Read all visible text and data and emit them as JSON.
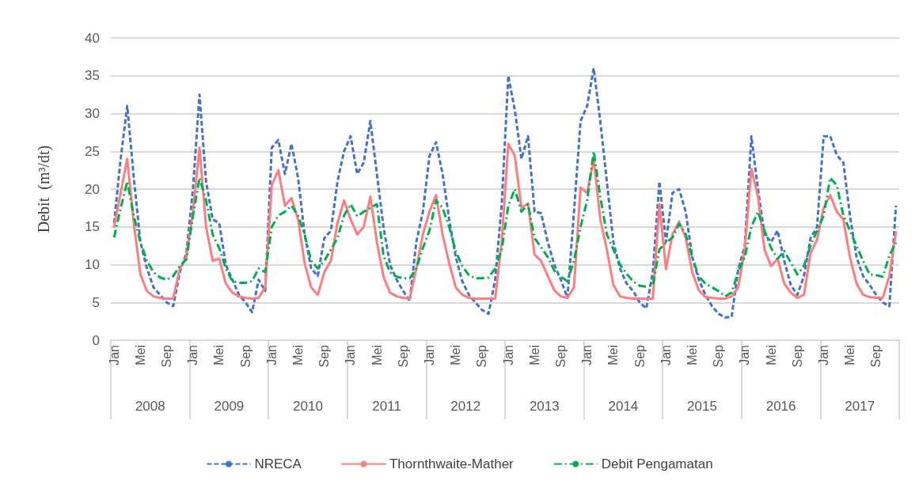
{
  "chart_data": {
    "type": "line",
    "ylabel": "Debit  (m³/dt)",
    "categories": [
      "Jan",
      null,
      null,
      null,
      "Mei",
      null,
      null,
      null,
      "Sep",
      null,
      null,
      null,
      "Jan",
      null,
      null,
      null,
      "Mei",
      null,
      null,
      null,
      "Sep",
      null,
      null,
      null,
      "Jan",
      null,
      null,
      null,
      "Mei",
      null,
      null,
      null,
      "Sep",
      null,
      null,
      null,
      "Jan",
      null,
      null,
      null,
      "Mei",
      null,
      null,
      null,
      "Sep",
      null,
      null,
      null,
      "Jan",
      null,
      null,
      null,
      "Mei",
      null,
      null,
      null,
      "Sep",
      null,
      null,
      null,
      "Jan",
      null,
      null,
      null,
      "Mei",
      null,
      null,
      null,
      "Sep",
      null,
      null,
      null,
      "Jan",
      null,
      null,
      null,
      "Mei",
      null,
      null,
      null,
      "Sep",
      null,
      null,
      null,
      "Jan",
      null,
      null,
      null,
      "Mei",
      null,
      null,
      null,
      "Sep",
      null,
      null,
      null,
      "Jan",
      null,
      null,
      null,
      "Mei",
      null,
      null,
      null,
      "Sep",
      null,
      null,
      null,
      "Jan",
      null,
      null,
      null,
      "Mei",
      null,
      null,
      null,
      "Sep",
      null,
      null,
      null
    ],
    "annotations": [
      "2008",
      "2009",
      "2010",
      "2011",
      "2012",
      "2013",
      "2014",
      "2015",
      "2016",
      "2017"
    ],
    "series": [
      {
        "name": "NRECA",
        "color": "#4472c4",
        "line_style": "dashed",
        "values": [
          15.5,
          24,
          31,
          21.5,
          13,
          9.5,
          7,
          6,
          5,
          4.5,
          9,
          11.5,
          20,
          32.5,
          21,
          16,
          15.5,
          10,
          8,
          6,
          5,
          3.7,
          8,
          6.5,
          25.5,
          26.5,
          22,
          26,
          21.5,
          14,
          9.5,
          8.5,
          13.5,
          14.5,
          21,
          25,
          27,
          22,
          23.5,
          29,
          22,
          15,
          10,
          8,
          6.5,
          5.2,
          13,
          17,
          24.4,
          26.2,
          22,
          16,
          11,
          7.8,
          6,
          5,
          4,
          3.5,
          8,
          18,
          35,
          30.4,
          24,
          27,
          17,
          16.8,
          13,
          10,
          8,
          5.6,
          17,
          29,
          31,
          36,
          29,
          21,
          13,
          9.5,
          7.5,
          6.5,
          5,
          4.2,
          9,
          21,
          13,
          19.5,
          20,
          17,
          11,
          8,
          6,
          4.5,
          3.5,
          3,
          3.1,
          9.4,
          12.5,
          27,
          20,
          14,
          13,
          14.5,
          10.5,
          7.3,
          6,
          8.5,
          13.5,
          15,
          27,
          27,
          24.5,
          23.5,
          16.5,
          11,
          8.5,
          7.3,
          6,
          5,
          4.5,
          17.8
        ]
      },
      {
        "name": "Thornthwaite-Mather",
        "color": "#ff7c80",
        "line_style": "solid",
        "values": [
          15,
          19.5,
          24,
          15.5,
          8.7,
          6.5,
          5.8,
          5.6,
          5.5,
          5.5,
          9.5,
          11,
          17,
          25.5,
          15,
          10.5,
          10.8,
          7.5,
          6.3,
          5.8,
          5.6,
          5.5,
          5.6,
          7,
          20.5,
          22.5,
          17.8,
          18.8,
          16,
          10.2,
          7,
          6,
          9,
          10.5,
          15.5,
          18.5,
          16,
          14,
          15,
          19,
          13,
          8.4,
          6.3,
          5.8,
          5.6,
          5.5,
          9.5,
          14,
          17,
          19.2,
          14,
          10.2,
          7,
          6,
          5.6,
          5.5,
          5.5,
          5.5,
          5.5,
          13,
          26,
          24.4,
          17.5,
          18.1,
          11.3,
          10.5,
          8.5,
          6.6,
          5.8,
          5.6,
          7,
          20.2,
          19.5,
          24,
          16,
          12,
          7.3,
          5.8,
          5.6,
          5.5,
          5.5,
          5.5,
          5.5,
          18,
          9.4,
          14,
          15.7,
          13.6,
          9,
          6.6,
          5.7,
          5.6,
          5.5,
          5.5,
          5.8,
          7,
          12,
          22.7,
          19,
          12,
          9.8,
          10.8,
          7.5,
          6.3,
          5.6,
          6,
          11.5,
          13.3,
          17.5,
          19.2,
          17,
          16,
          11,
          7.5,
          6,
          5.7,
          5.6,
          5.6,
          8.5,
          14.3
        ]
      },
      {
        "name": "Debit Pengamatan",
        "color": "#00b050",
        "line_style": "dashdot",
        "values": [
          13.6,
          17.5,
          21,
          16.4,
          13,
          10.5,
          9,
          8.3,
          8,
          8.5,
          9.8,
          10.7,
          16.4,
          21.5,
          18.5,
          14,
          12.2,
          9.5,
          7.8,
          7.6,
          7.6,
          7.8,
          9.5,
          9,
          15,
          16.5,
          17,
          17.8,
          16.5,
          14,
          10.5,
          9.5,
          10.5,
          12,
          13.5,
          16.5,
          18,
          16.4,
          17,
          17.5,
          18,
          11.2,
          9,
          8.4,
          8.2,
          8.2,
          9.5,
          12.2,
          14.5,
          18.5,
          17.5,
          15,
          11.8,
          9.8,
          8.6,
          8.2,
          8.2,
          8.3,
          9.5,
          12,
          17.8,
          20,
          17,
          18,
          13.5,
          12.3,
          11,
          9.2,
          8.4,
          7.8,
          10.5,
          15,
          18.5,
          25,
          19,
          14,
          12,
          10,
          8.8,
          7.8,
          7.2,
          7.1,
          7.3,
          12,
          12.9,
          13.6,
          15.4,
          14,
          11,
          8.4,
          7.5,
          7,
          6.5,
          5.8,
          6.3,
          9.1,
          11,
          15,
          17,
          14.5,
          12.2,
          10.8,
          11.8,
          10.3,
          8.7,
          9.8,
          12.5,
          14.5,
          16.5,
          21.5,
          20.5,
          16.5,
          14.5,
          12.5,
          10.5,
          8.7,
          8.6,
          8.4,
          11.2,
          12.9
        ]
      }
    ],
    "ylim": [
      0,
      40
    ],
    "yticks": [
      0,
      5,
      10,
      15,
      20,
      25,
      30,
      35,
      40
    ],
    "grid": "y",
    "legend": "bottom",
    "marker": "none"
  }
}
